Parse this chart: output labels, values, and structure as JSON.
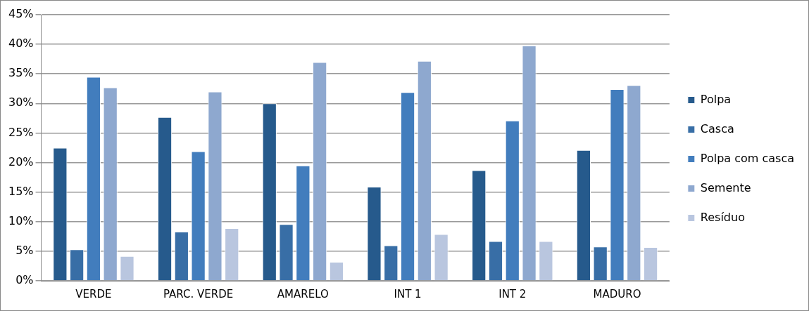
{
  "chart_data": {
    "type": "bar",
    "categories": [
      "VERDE",
      "PARC. VERDE",
      "AMARELO",
      "INT 1",
      "INT 2",
      "MADURO"
    ],
    "series": [
      {
        "name": "Polpa",
        "color": "#265a8c",
        "values": [
          22.5,
          27.7,
          30.0,
          15.9,
          18.7,
          22.1
        ]
      },
      {
        "name": "Casca",
        "color": "#386ea6",
        "values": [
          5.3,
          8.3,
          9.6,
          6.0,
          6.7,
          5.8
        ]
      },
      {
        "name": "Polpa com casca",
        "color": "#427dbd",
        "values": [
          34.5,
          21.9,
          19.5,
          31.9,
          27.1,
          32.4
        ]
      },
      {
        "name": "Semente",
        "color": "#8ea8cf",
        "values": [
          32.7,
          32.0,
          37.0,
          37.2,
          39.8,
          33.1
        ]
      },
      {
        "name": "Resíduo",
        "color": "#b9c6df",
        "values": [
          4.2,
          8.9,
          3.2,
          7.9,
          6.7,
          5.7
        ]
      }
    ],
    "ylim": [
      0,
      45
    ],
    "yticks": [
      {
        "value": 0,
        "label": "0%"
      },
      {
        "value": 5,
        "label": "5%"
      },
      {
        "value": 10,
        "label": "10%"
      },
      {
        "value": 15,
        "label": "15%"
      },
      {
        "value": 20,
        "label": "20%"
      },
      {
        "value": 25,
        "label": "25%"
      },
      {
        "value": 30,
        "label": "30%"
      },
      {
        "value": 35,
        "label": "35%"
      },
      {
        "value": 40,
        "label": "40%"
      },
      {
        "value": 45,
        "label": "45%"
      }
    ],
    "grid": "y",
    "legend": "right"
  }
}
